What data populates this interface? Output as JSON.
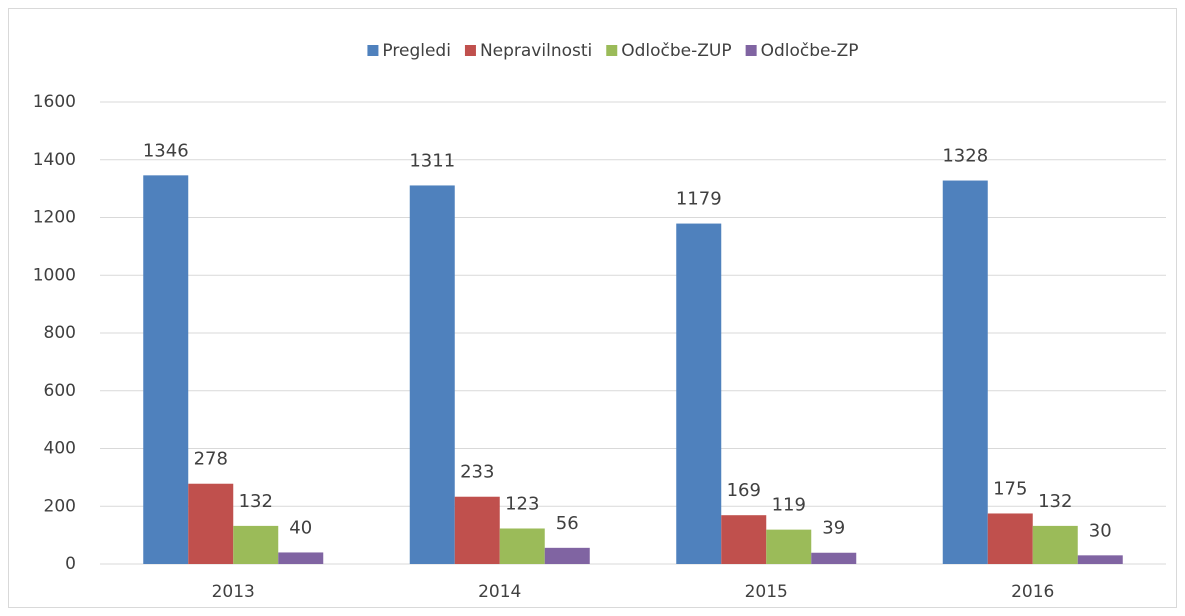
{
  "chart_data": {
    "type": "bar",
    "categories": [
      "2013",
      "2014",
      "2015",
      "2016"
    ],
    "series": [
      {
        "name": "Pregledi",
        "color": "#4f81bd",
        "values": [
          1346,
          1311,
          1179,
          1328
        ]
      },
      {
        "name": "Nepravilnosti",
        "color": "#c0504d",
        "values": [
          278,
          233,
          169,
          175
        ]
      },
      {
        "name": "Odločbe-ZUP",
        "color": "#9bbb59",
        "values": [
          132,
          123,
          119,
          132
        ]
      },
      {
        "name": "Odločbe-ZP",
        "color": "#8064a2",
        "values": [
          40,
          56,
          39,
          30
        ]
      }
    ],
    "ylim": [
      0,
      1600
    ],
    "yticks": [
      0,
      200,
      400,
      600,
      800,
      1000,
      1200,
      1400,
      1600
    ],
    "grid": true,
    "legend": "top"
  }
}
